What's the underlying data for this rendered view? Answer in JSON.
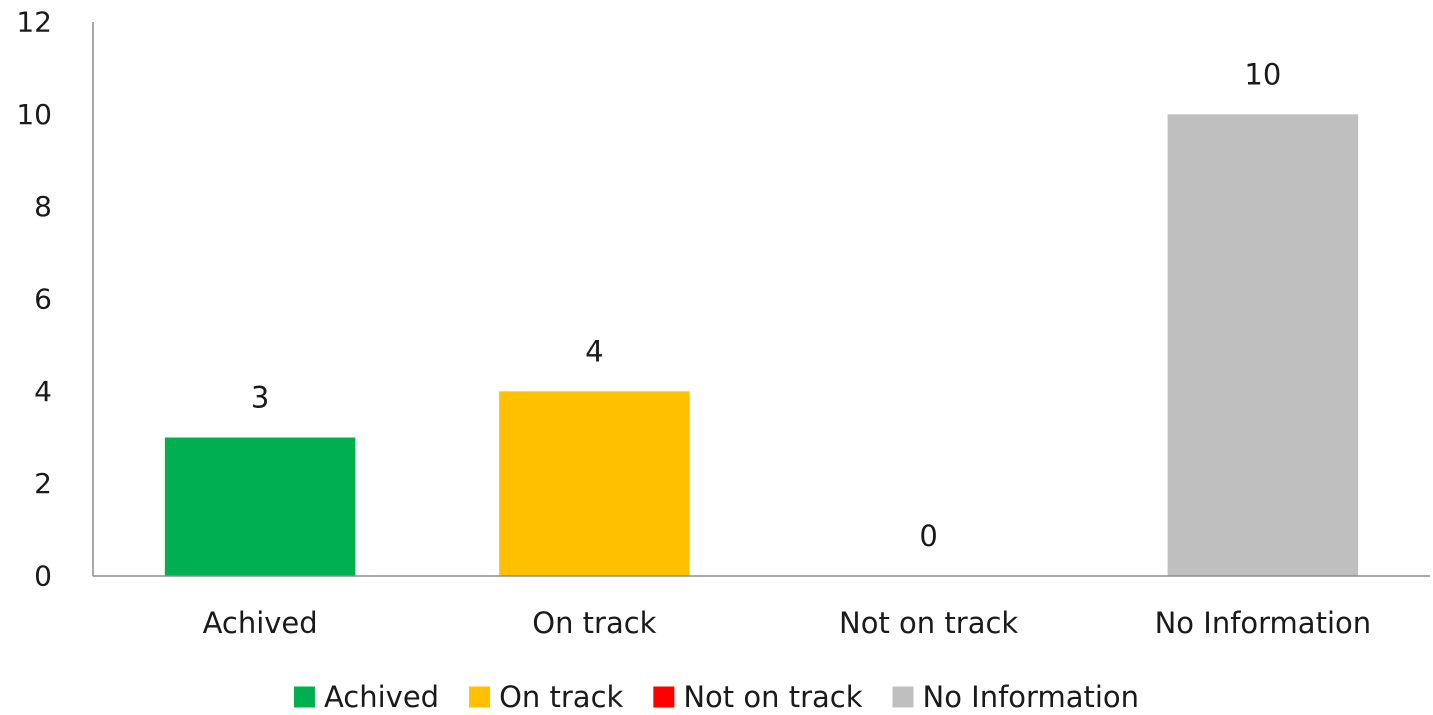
{
  "chart_data": {
    "type": "bar",
    "title": "",
    "xlabel": "",
    "ylabel": "",
    "categories": [
      "Achived",
      "On track",
      "Not on track",
      "No Information"
    ],
    "values": [
      3,
      4,
      0,
      10
    ],
    "colors": [
      "#00b050",
      "#ffc000",
      "#ff0000",
      "#bfbfbf"
    ],
    "ylim": [
      0,
      12
    ],
    "yticks": [
      0,
      2,
      4,
      6,
      8,
      10,
      12
    ],
    "grid": false,
    "data_labels": true,
    "legend": {
      "position": "bottom",
      "entries": [
        "Achived",
        "On track",
        "Not on track",
        "No Information"
      ]
    }
  }
}
